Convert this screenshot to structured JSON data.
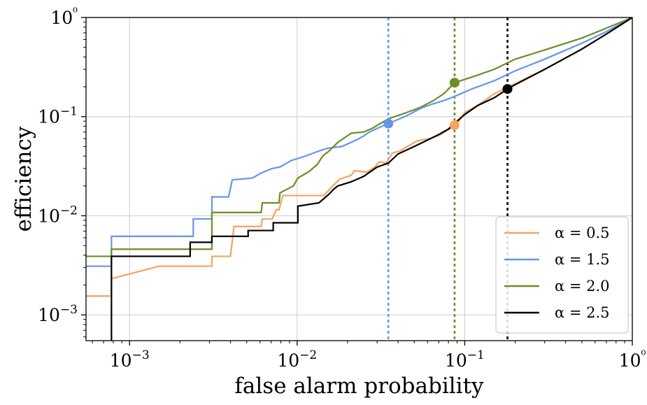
{
  "chart_data": {
    "type": "line",
    "xlabel": "false alarm probability",
    "ylabel": "efficiency",
    "xscale": "log",
    "yscale": "log",
    "xlim": [
      0.00055,
      1
    ],
    "ylim": [
      0.00055,
      1
    ],
    "grid": true,
    "legend_position": "bottom-right",
    "x_ticks": [
      {
        "value": 0.001,
        "label": "10−3"
      },
      {
        "value": 0.01,
        "label": "10−2"
      },
      {
        "value": 0.1,
        "label": "10−1"
      },
      {
        "value": 1,
        "label": "10⁰"
      }
    ],
    "y_ticks": [
      {
        "value": 0.001,
        "label": "10−3"
      },
      {
        "value": 0.01,
        "label": "10−2"
      },
      {
        "value": 0.1,
        "label": "10−1"
      },
      {
        "value": 1,
        "label": "10⁰"
      }
    ],
    "series": [
      {
        "name": "α = 0.5",
        "color": "#f4a460",
        "x": [
          0.00055,
          0.00078,
          0.00078,
          0.0015,
          0.0029,
          0.0031,
          0.0031,
          0.004,
          0.0042,
          0.0061,
          0.0062,
          0.0071,
          0.0075,
          0.0078,
          0.0082,
          0.0098,
          0.0102,
          0.0145,
          0.0163,
          0.018,
          0.021,
          0.022,
          0.026,
          0.029,
          0.031,
          0.034,
          0.037,
          0.041,
          0.052,
          0.062,
          0.071,
          0.081,
          0.089,
          0.1,
          0.12,
          0.15,
          0.2,
          0.3,
          0.5,
          0.7,
          1.0
        ],
        "y": [
          0.00155,
          0.00155,
          0.00232,
          0.0031,
          0.0031,
          0.0031,
          0.0039,
          0.0039,
          0.0078,
          0.0078,
          0.0093,
          0.0093,
          0.0115,
          0.0115,
          0.016,
          0.016,
          0.016,
          0.016,
          0.02,
          0.0235,
          0.0255,
          0.0285,
          0.0275,
          0.031,
          0.035,
          0.034,
          0.043,
          0.045,
          0.057,
          0.06,
          0.065,
          0.075,
          0.082,
          0.11,
          0.13,
          0.17,
          0.215,
          0.3,
          0.48,
          0.68,
          1.0
        ]
      },
      {
        "name": "α = 1.5",
        "color": "#6495ed",
        "x": [
          0.00055,
          0.00078,
          0.00078,
          0.0024,
          0.0024,
          0.0031,
          0.0031,
          0.0039,
          0.0041,
          0.0054,
          0.0061,
          0.0071,
          0.0079,
          0.0092,
          0.0112,
          0.0135,
          0.0152,
          0.0185,
          0.021,
          0.023,
          0.025,
          0.027,
          0.03,
          0.035,
          0.045,
          0.055,
          0.065,
          0.075,
          0.087,
          0.11,
          0.15,
          0.2,
          0.3,
          0.5,
          0.7,
          1.0
        ],
        "y": [
          0.0031,
          0.0031,
          0.0062,
          0.0062,
          0.0093,
          0.0093,
          0.0155,
          0.0155,
          0.023,
          0.024,
          0.027,
          0.03,
          0.031,
          0.036,
          0.04,
          0.045,
          0.048,
          0.05,
          0.055,
          0.059,
          0.064,
          0.07,
          0.076,
          0.085,
          0.102,
          0.122,
          0.135,
          0.145,
          0.16,
          0.19,
          0.23,
          0.29,
          0.38,
          0.55,
          0.72,
          1.0
        ]
      },
      {
        "name": "α = 2.0",
        "color": "#6b8e23",
        "x": [
          0.00055,
          0.00078,
          0.00078,
          0.0031,
          0.0031,
          0.0061,
          0.0062,
          0.0078,
          0.0079,
          0.0095,
          0.0101,
          0.0118,
          0.0132,
          0.0142,
          0.0155,
          0.0175,
          0.021,
          0.025,
          0.028,
          0.035,
          0.045,
          0.055,
          0.065,
          0.075,
          0.087,
          0.11,
          0.15,
          0.2,
          0.3,
          0.5,
          0.7,
          1.0
        ],
        "y": [
          0.0039,
          0.0039,
          0.0046,
          0.0046,
          0.0108,
          0.0108,
          0.0135,
          0.0135,
          0.017,
          0.02,
          0.024,
          0.028,
          0.033,
          0.04,
          0.045,
          0.055,
          0.068,
          0.07,
          0.076,
          0.095,
          0.11,
          0.125,
          0.145,
          0.17,
          0.22,
          0.25,
          0.3,
          0.38,
          0.47,
          0.62,
          0.78,
          1.0
        ]
      },
      {
        "name": "α = 2.5",
        "color": "#000000",
        "x": [
          0.00078,
          0.00078,
          0.0023,
          0.0023,
          0.0031,
          0.0031,
          0.0051,
          0.0051,
          0.0072,
          0.0072,
          0.0101,
          0.0101,
          0.0135,
          0.0155,
          0.0165,
          0.0175,
          0.021,
          0.025,
          0.03,
          0.035,
          0.04,
          0.05,
          0.06,
          0.07,
          0.08,
          0.09,
          0.1,
          0.12,
          0.15,
          0.18,
          0.2,
          0.3,
          0.5,
          0.7,
          1.0
        ],
        "y": [
          0.00055,
          0.0039,
          0.0039,
          0.0054,
          0.0054,
          0.0062,
          0.0062,
          0.0071,
          0.0071,
          0.0085,
          0.0085,
          0.0125,
          0.0135,
          0.0165,
          0.0185,
          0.02,
          0.022,
          0.025,
          0.031,
          0.034,
          0.042,
          0.05,
          0.058,
          0.066,
          0.075,
          0.09,
          0.105,
          0.13,
          0.155,
          0.19,
          0.21,
          0.3,
          0.48,
          0.68,
          1.0
        ]
      }
    ],
    "vlines": [
      {
        "x": 0.035,
        "color": "#6495ed",
        "style": "dotted"
      },
      {
        "x": 0.087,
        "color": "#6b8e23",
        "style": "dotted"
      },
      {
        "x": 0.18,
        "color": "#000000",
        "style": "dotted"
      }
    ],
    "markers": [
      {
        "x": 0.035,
        "y": 0.085,
        "color": "#6495ed"
      },
      {
        "x": 0.087,
        "y": 0.082,
        "color": "#f4a460"
      },
      {
        "x": 0.087,
        "y": 0.22,
        "color": "#6b8e23"
      },
      {
        "x": 0.18,
        "y": 0.19,
        "color": "#000000"
      }
    ]
  }
}
